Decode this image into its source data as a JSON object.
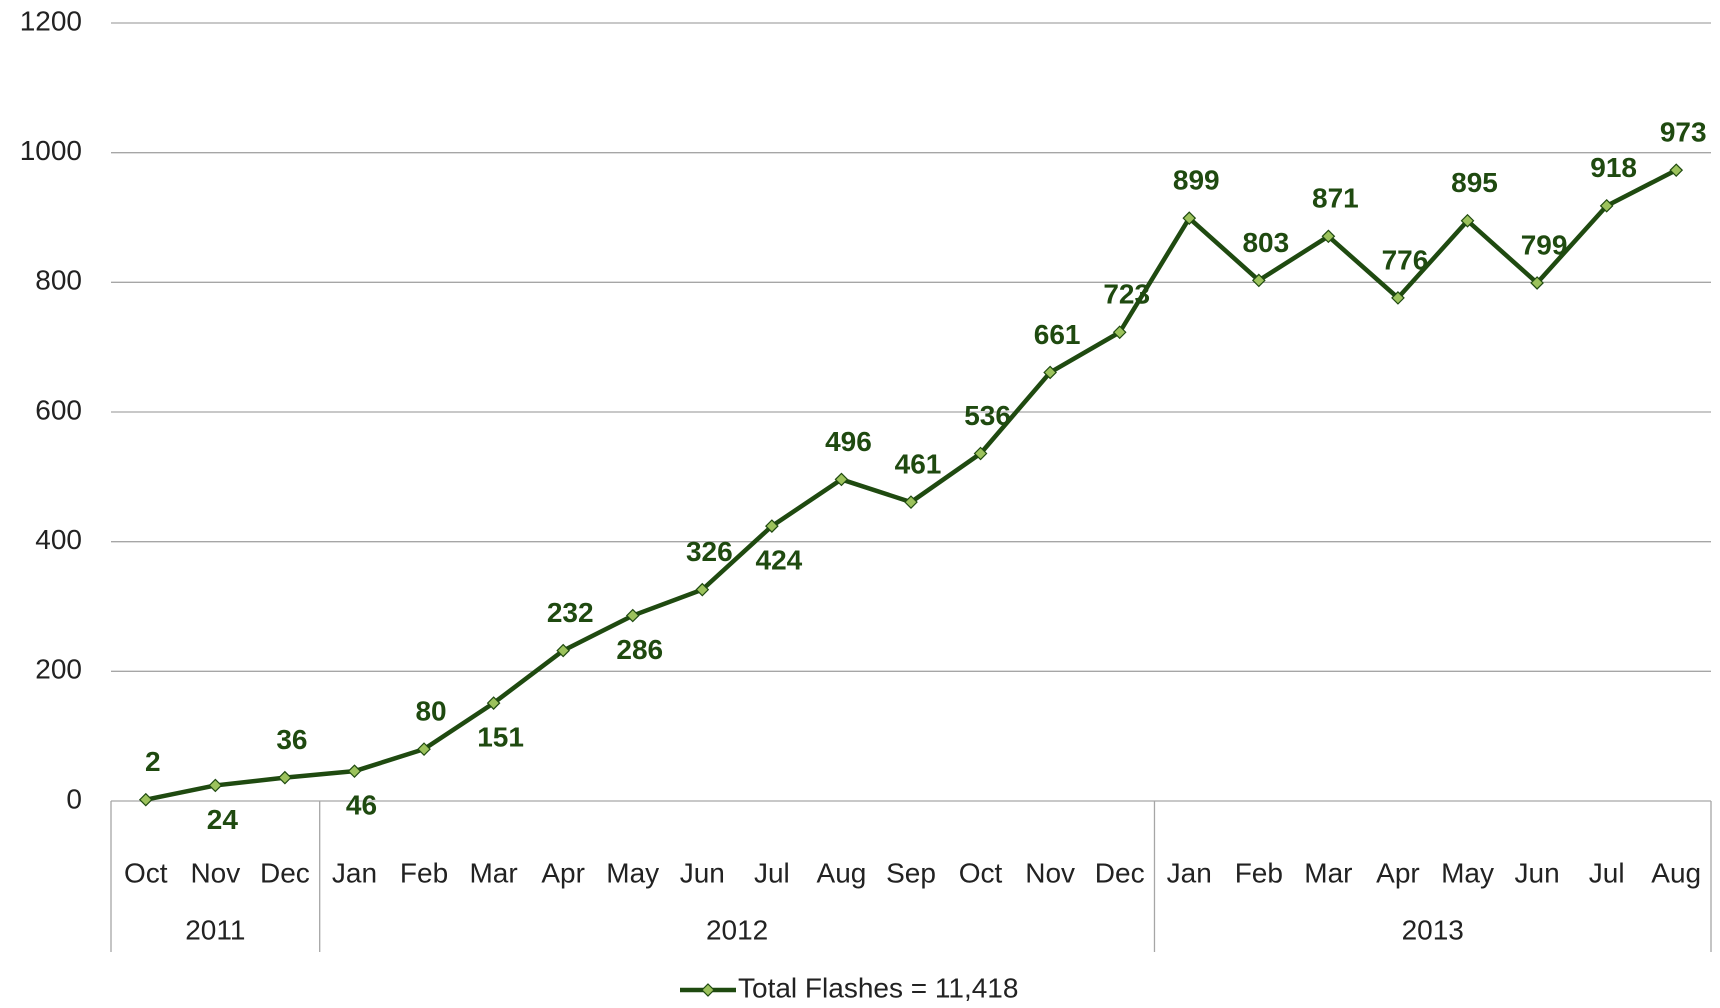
{
  "chart_data": {
    "type": "line",
    "category_groups": [
      {
        "label": "2011",
        "categories": [
          "Oct",
          "Nov",
          "Dec"
        ]
      },
      {
        "label": "2012",
        "categories": [
          "Jan",
          "Feb",
          "Mar",
          "Apr",
          "May",
          "Jun",
          "Jul",
          "Aug",
          "Sep",
          "Oct",
          "Nov",
          "Dec"
        ]
      },
      {
        "label": "2013",
        "categories": [
          "Jan",
          "Feb",
          "Mar",
          "Apr",
          "May",
          "Jun",
          "Jul",
          "Aug"
        ]
      }
    ],
    "series": [
      {
        "name": "Total Flashes = 11,418",
        "color": "#1f4a10",
        "marker_color": "#9cc25c",
        "values": [
          2,
          24,
          36,
          46,
          80,
          151,
          232,
          286,
          326,
          424,
          496,
          461,
          536,
          661,
          723,
          899,
          803,
          871,
          776,
          895,
          799,
          918,
          973
        ]
      }
    ],
    "ylim": [
      0,
      1200
    ],
    "yticks": [
      0,
      200,
      400,
      600,
      800,
      1000,
      1200
    ],
    "grid": true,
    "legend": "bottom"
  }
}
